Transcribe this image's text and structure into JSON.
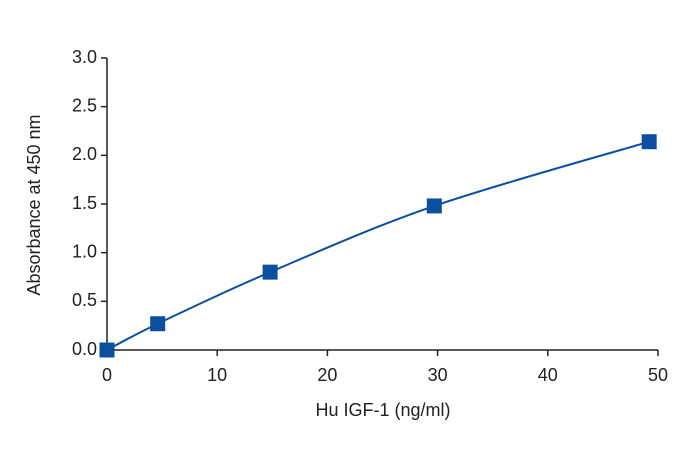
{
  "chart_data": {
    "type": "scatter",
    "x_label": "Hu IGF-1 (ng/ml)",
    "y_label": "Absorbance at 450 nm",
    "x": [
      0,
      4.6,
      14.8,
      29.7,
      49.2
    ],
    "values": [
      0.0,
      0.27,
      0.8,
      1.48,
      2.14
    ],
    "color": "#0b4f9e",
    "line": "smooth",
    "xlim": [
      0,
      50
    ],
    "xticks": [
      0,
      10,
      20,
      30,
      40,
      50
    ],
    "ylim": [
      0,
      3
    ],
    "yticks": [
      {
        "value": 0,
        "label": "0.0"
      },
      {
        "value": 0.5,
        "label": "0.5"
      },
      {
        "value": 1,
        "label": "1.0"
      },
      {
        "value": 1.5,
        "label": "1.5"
      },
      {
        "value": 2,
        "label": "2.0"
      },
      {
        "value": 2.5,
        "label": "2.5"
      },
      {
        "value": 3,
        "label": "3.0"
      }
    ]
  }
}
